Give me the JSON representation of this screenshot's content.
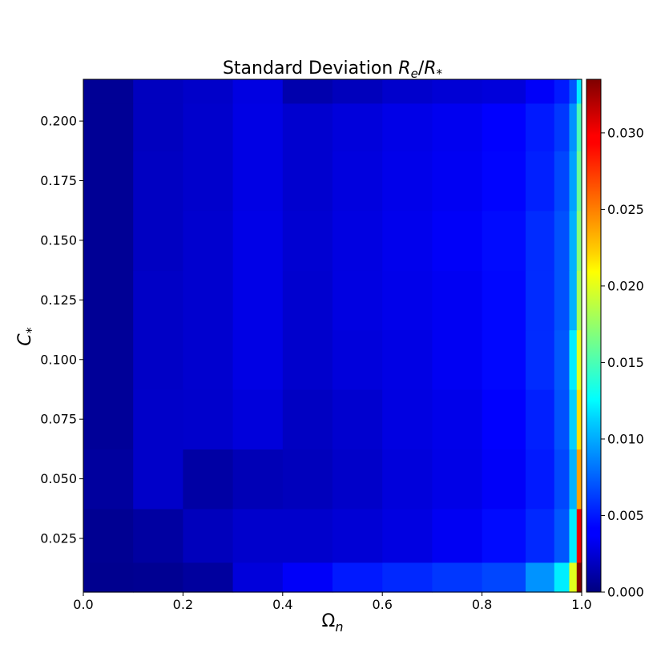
{
  "chart_data": {
    "type": "heatmap",
    "title": "Standard Deviation R_e/R_*",
    "title_parts": {
      "prefix": "Standard Deviation ",
      "re": "R",
      "re_sub": "e",
      "slash": "/",
      "rs": "R",
      "rs_sub": "*"
    },
    "xlabel_parts": {
      "base": "Ω",
      "sub": "n"
    },
    "ylabel_parts": {
      "base": "C",
      "sub": "*"
    },
    "colormap": "jet",
    "x_range": [
      0.0,
      1.0
    ],
    "y_range": [
      0.0025,
      0.2175
    ],
    "x_ticks": [
      0.0,
      0.2,
      0.4,
      0.6,
      0.8,
      1.0
    ],
    "x_tick_labels": [
      "0.0",
      "0.2",
      "0.4",
      "0.6",
      "0.8",
      "1.0"
    ],
    "y_ticks": [
      0.025,
      0.05,
      0.075,
      0.1,
      0.125,
      0.15,
      0.175,
      0.2
    ],
    "y_tick_labels": [
      "0.025",
      "0.050",
      "0.075",
      "0.100",
      "0.125",
      "0.150",
      "0.175",
      "0.200"
    ],
    "colorbar_range": [
      0.0,
      0.0335
    ],
    "colorbar_ticks": [
      0.0,
      0.005,
      0.01,
      0.015,
      0.02,
      0.025,
      0.03
    ],
    "colorbar_tick_labels": [
      "0.000",
      "0.005",
      "0.010",
      "0.015",
      "0.020",
      "0.025",
      "0.030"
    ],
    "omega_columns": [
      0.05,
      0.15,
      0.25,
      0.35,
      0.45,
      0.55,
      0.65,
      0.75,
      0.85,
      0.925,
      0.965,
      0.985,
      0.995
    ],
    "c_rows": [
      0.005,
      0.025,
      0.05,
      0.075,
      0.1,
      0.125,
      0.15,
      0.175,
      0.2,
      0.215
    ],
    "values": [
      [
        0.0005,
        0.0006,
        0.001,
        0.003,
        0.004,
        0.005,
        0.0055,
        0.006,
        0.0065,
        0.009,
        0.012,
        0.02,
        0.0335
      ],
      [
        0.0006,
        0.0011,
        0.002,
        0.0025,
        0.0025,
        0.0028,
        0.0032,
        0.0038,
        0.0045,
        0.0055,
        0.007,
        0.012,
        0.03
      ],
      [
        0.001,
        0.0024,
        0.0012,
        0.0018,
        0.002,
        0.0024,
        0.003,
        0.0034,
        0.004,
        0.005,
        0.0065,
        0.01,
        0.024
      ],
      [
        0.0008,
        0.0024,
        0.0025,
        0.003,
        0.0022,
        0.0026,
        0.0032,
        0.0035,
        0.0042,
        0.0052,
        0.0068,
        0.011,
        0.022
      ],
      [
        0.0008,
        0.0023,
        0.0026,
        0.0033,
        0.0025,
        0.003,
        0.0033,
        0.0038,
        0.0044,
        0.0056,
        0.007,
        0.012,
        0.02
      ],
      [
        0.0007,
        0.0023,
        0.0026,
        0.0034,
        0.0026,
        0.0032,
        0.0035,
        0.0038,
        0.0044,
        0.0056,
        0.0068,
        0.01,
        0.018
      ],
      [
        0.0007,
        0.0022,
        0.0026,
        0.0034,
        0.0027,
        0.0032,
        0.0036,
        0.004,
        0.0045,
        0.0056,
        0.0068,
        0.01,
        0.017
      ],
      [
        0.0007,
        0.0022,
        0.0025,
        0.0033,
        0.0026,
        0.0031,
        0.0035,
        0.0038,
        0.0043,
        0.0052,
        0.0065,
        0.0095,
        0.016
      ],
      [
        0.0007,
        0.0021,
        0.0025,
        0.0033,
        0.0026,
        0.003,
        0.0034,
        0.0037,
        0.0042,
        0.005,
        0.006,
        0.009,
        0.015
      ],
      [
        0.0007,
        0.0021,
        0.0024,
        0.0032,
        0.0015,
        0.002,
        0.0025,
        0.0028,
        0.003,
        0.004,
        0.005,
        0.007,
        0.012
      ]
    ]
  }
}
